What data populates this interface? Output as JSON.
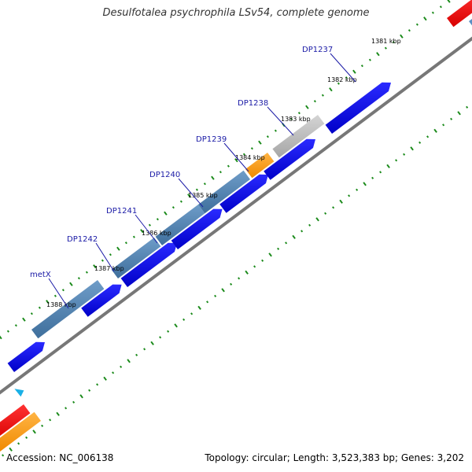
{
  "title": "Desulfotalea psychrophila LSv54, complete genome",
  "accession_text": "Accession: NC_006138",
  "info_text": "Topology: circular; Length: 3,523,383 bp; Genes: 3,202",
  "scale_labels": [
    "1381 kbp",
    "1382 kbp",
    "1383 kbp",
    "1384 kbp",
    "1385 kbp",
    "1386 kbp",
    "1387 kbp",
    "1388 kbp"
  ],
  "gene_labels": [
    "DP1237",
    "DP1238",
    "DP1239",
    "DP1240",
    "DP1241",
    "DP1242",
    "metX"
  ],
  "colors": {
    "cds_forward": "#0000ee",
    "gene_steelblue": "#4a7faf",
    "gene_orange": "#ff9900",
    "gene_gray": "#b0b0b0",
    "gene_red": "#ee0000",
    "tick_green": "#1a8a1a",
    "backbone": "#777777",
    "label_blue": "#1a1aa6"
  }
}
